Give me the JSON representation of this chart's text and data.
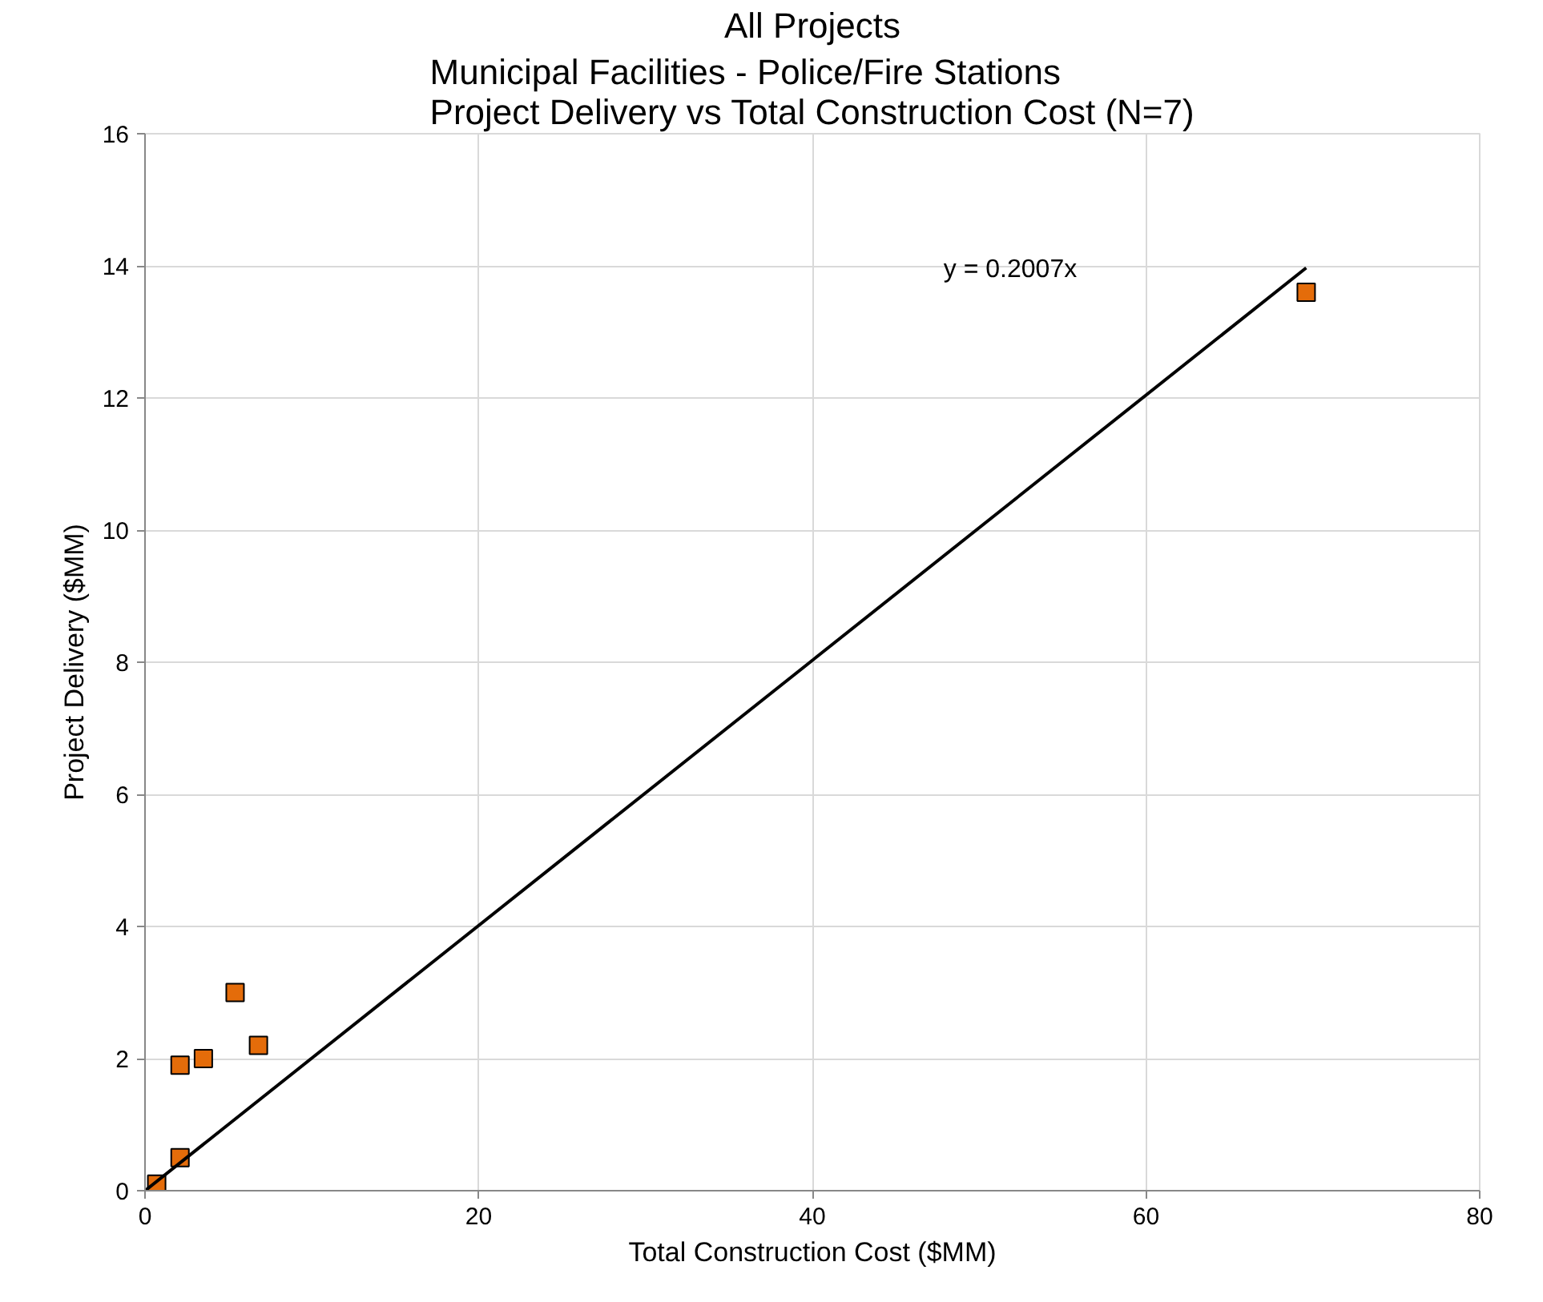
{
  "chart_data": {
    "type": "scatter",
    "title": "All Projects",
    "subtitle": "Municipal Facilities - Police/Fire Stations\nProject Delivery vs Total Construction Cost (N=7)",
    "xlabel": "Total Construction Cost ($MM)",
    "ylabel": "Project Delivery ($MM)",
    "xlim": [
      0,
      80
    ],
    "xticks": [
      0,
      20,
      40,
      60,
      80
    ],
    "ylim": [
      0,
      16
    ],
    "yticks": [
      0,
      2,
      4,
      6,
      8,
      10,
      12,
      14,
      16
    ],
    "grid": true,
    "series": [
      {
        "marker": "square",
        "color": "#e46c0a",
        "x": [
          69.6,
          6.8,
          5.4,
          3.5,
          2.1,
          2.1,
          0.7
        ],
        "values": [
          13.6,
          2.2,
          3.0,
          2.0,
          1.9,
          0.5,
          0.1
        ]
      },
      {
        "type": "line",
        "color": "#000000",
        "x": [
          0,
          69.6
        ],
        "values": [
          0,
          13.97
        ]
      }
    ],
    "annotations": [
      "y = 0.2007x"
    ]
  }
}
